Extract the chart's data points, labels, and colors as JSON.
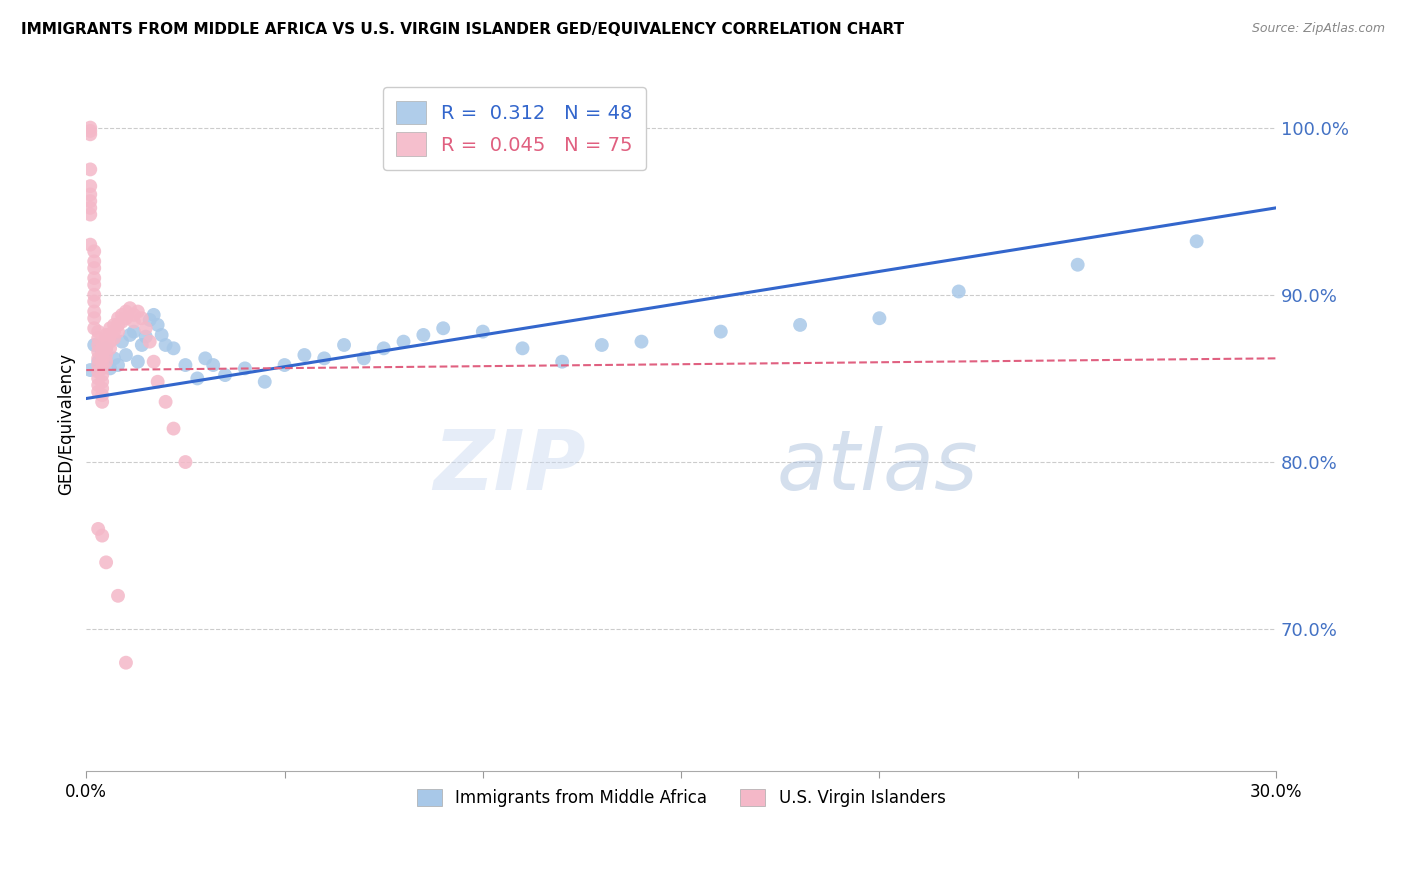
{
  "title": "IMMIGRANTS FROM MIDDLE AFRICA VS U.S. VIRGIN ISLANDER GED/EQUIVALENCY CORRELATION CHART",
  "source": "Source: ZipAtlas.com",
  "ylabel": "GED/Equivalency",
  "ytick_labels": [
    "100.0%",
    "90.0%",
    "80.0%",
    "70.0%"
  ],
  "ytick_values": [
    1.0,
    0.9,
    0.8,
    0.7
  ],
  "xlim": [
    0.0,
    0.3
  ],
  "ylim": [
    0.615,
    1.03
  ],
  "blue_R": "0.312",
  "blue_N": "48",
  "pink_R": "0.045",
  "pink_N": "75",
  "legend_label_blue": "Immigrants from Middle Africa",
  "legend_label_pink": "U.S. Virgin Islanders",
  "blue_color": "#a8c8e8",
  "pink_color": "#f4b8c8",
  "blue_line_color": "#3366cc",
  "pink_line_color": "#e06080",
  "watermark_zip": "ZIP",
  "watermark_atlas": "atlas",
  "blue_line_x": [
    0.0,
    0.3
  ],
  "blue_line_y": [
    0.838,
    0.952
  ],
  "pink_line_x": [
    0.0,
    0.3
  ],
  "pink_line_y": [
    0.855,
    0.862
  ],
  "blue_points_x": [
    0.001,
    0.002,
    0.003,
    0.004,
    0.005,
    0.006,
    0.007,
    0.008,
    0.009,
    0.01,
    0.011,
    0.012,
    0.013,
    0.014,
    0.015,
    0.016,
    0.017,
    0.018,
    0.019,
    0.02,
    0.022,
    0.025,
    0.028,
    0.03,
    0.032,
    0.035,
    0.04,
    0.045,
    0.05,
    0.055,
    0.06,
    0.065,
    0.07,
    0.075,
    0.08,
    0.085,
    0.09,
    0.1,
    0.11,
    0.12,
    0.13,
    0.14,
    0.16,
    0.18,
    0.2,
    0.22,
    0.25,
    0.28
  ],
  "blue_points_y": [
    0.855,
    0.87,
    0.86,
    0.865,
    0.868,
    0.856,
    0.862,
    0.858,
    0.872,
    0.864,
    0.876,
    0.878,
    0.86,
    0.87,
    0.875,
    0.885,
    0.888,
    0.882,
    0.876,
    0.87,
    0.868,
    0.858,
    0.85,
    0.862,
    0.858,
    0.852,
    0.856,
    0.848,
    0.858,
    0.864,
    0.862,
    0.87,
    0.862,
    0.868,
    0.872,
    0.876,
    0.88,
    0.878,
    0.868,
    0.86,
    0.87,
    0.872,
    0.878,
    0.882,
    0.886,
    0.902,
    0.918,
    0.932
  ],
  "pink_points_x": [
    0.001,
    0.001,
    0.001,
    0.001,
    0.001,
    0.001,
    0.001,
    0.001,
    0.001,
    0.001,
    0.002,
    0.002,
    0.002,
    0.002,
    0.002,
    0.002,
    0.002,
    0.002,
    0.002,
    0.002,
    0.003,
    0.003,
    0.003,
    0.003,
    0.003,
    0.003,
    0.003,
    0.003,
    0.003,
    0.003,
    0.004,
    0.004,
    0.004,
    0.004,
    0.004,
    0.004,
    0.004,
    0.004,
    0.004,
    0.005,
    0.005,
    0.005,
    0.005,
    0.005,
    0.006,
    0.006,
    0.006,
    0.006,
    0.007,
    0.007,
    0.007,
    0.008,
    0.008,
    0.008,
    0.009,
    0.009,
    0.01,
    0.01,
    0.011,
    0.012,
    0.012,
    0.013,
    0.014,
    0.015,
    0.016,
    0.017,
    0.018,
    0.02,
    0.022,
    0.025,
    0.003,
    0.004,
    0.005,
    0.008,
    0.01
  ],
  "pink_points_y": [
    1.0,
    0.998,
    0.996,
    0.975,
    0.965,
    0.96,
    0.956,
    0.952,
    0.948,
    0.93,
    0.926,
    0.92,
    0.916,
    0.91,
    0.906,
    0.9,
    0.896,
    0.89,
    0.886,
    0.88,
    0.878,
    0.874,
    0.87,
    0.866,
    0.862,
    0.858,
    0.854,
    0.85,
    0.846,
    0.842,
    0.868,
    0.864,
    0.86,
    0.856,
    0.852,
    0.848,
    0.844,
    0.84,
    0.836,
    0.876,
    0.872,
    0.868,
    0.864,
    0.86,
    0.88,
    0.876,
    0.872,
    0.868,
    0.882,
    0.878,
    0.874,
    0.886,
    0.882,
    0.878,
    0.888,
    0.884,
    0.89,
    0.886,
    0.892,
    0.888,
    0.884,
    0.89,
    0.886,
    0.88,
    0.872,
    0.86,
    0.848,
    0.836,
    0.82,
    0.8,
    0.76,
    0.756,
    0.74,
    0.72,
    0.68
  ]
}
